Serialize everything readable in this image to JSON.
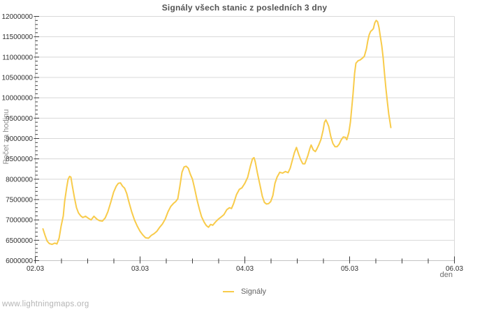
{
  "page": {
    "footer": "www.lightningmaps.org"
  },
  "colors": {
    "background": "#ffffff",
    "line": "#f8cb4a",
    "grid": "#d8d8d8",
    "axis": "#c4c4c4",
    "tick": "#3a3a3a",
    "tick_label": "#303030",
    "title": "#545454",
    "secondary_text": "#6e6e6e",
    "muted_text": "#8f8f8f",
    "watermark": "#b4b4b4"
  },
  "chart_data": {
    "type": "line",
    "title": "Signály všech stanic z posledních 3 dny",
    "xlabel": "den",
    "ylabel": "Počet za hodinu",
    "grid": "horizontal",
    "legend_position": "bottom-center",
    "x_tick_labels": [
      "02.03",
      "03.03",
      "04.03",
      "05.03",
      "06.03"
    ],
    "x_range_days": [
      0,
      4
    ],
    "x_minor_tick_days": 0.25,
    "ylim": [
      6000000,
      12000000
    ],
    "y_tick_step": 500000,
    "y_minor_tick_step": 100000,
    "series": [
      {
        "name": "Signály",
        "color": "#f8cb4a",
        "points": [
          [
            0.073,
            6780000
          ],
          [
            0.093,
            6620000
          ],
          [
            0.113,
            6480000
          ],
          [
            0.133,
            6420000
          ],
          [
            0.16,
            6400000
          ],
          [
            0.187,
            6430000
          ],
          [
            0.207,
            6410000
          ],
          [
            0.227,
            6550000
          ],
          [
            0.247,
            6850000
          ],
          [
            0.267,
            7100000
          ],
          [
            0.28,
            7450000
          ],
          [
            0.3,
            7800000
          ],
          [
            0.313,
            8000000
          ],
          [
            0.327,
            8070000
          ],
          [
            0.34,
            8050000
          ],
          [
            0.353,
            7850000
          ],
          [
            0.373,
            7550000
          ],
          [
            0.393,
            7300000
          ],
          [
            0.413,
            7170000
          ],
          [
            0.433,
            7100000
          ],
          [
            0.453,
            7060000
          ],
          [
            0.48,
            7090000
          ],
          [
            0.507,
            7040000
          ],
          [
            0.533,
            7000000
          ],
          [
            0.56,
            7090000
          ],
          [
            0.587,
            7020000
          ],
          [
            0.613,
            6980000
          ],
          [
            0.64,
            6970000
          ],
          [
            0.667,
            7050000
          ],
          [
            0.693,
            7200000
          ],
          [
            0.72,
            7430000
          ],
          [
            0.747,
            7680000
          ],
          [
            0.773,
            7830000
          ],
          [
            0.793,
            7900000
          ],
          [
            0.813,
            7910000
          ],
          [
            0.833,
            7830000
          ],
          [
            0.853,
            7780000
          ],
          [
            0.873,
            7650000
          ],
          [
            0.893,
            7450000
          ],
          [
            0.92,
            7200000
          ],
          [
            0.947,
            7000000
          ],
          [
            0.973,
            6850000
          ],
          [
            1.0,
            6720000
          ],
          [
            1.027,
            6630000
          ],
          [
            1.053,
            6560000
          ],
          [
            1.08,
            6550000
          ],
          [
            1.107,
            6620000
          ],
          [
            1.133,
            6660000
          ],
          [
            1.16,
            6720000
          ],
          [
            1.187,
            6820000
          ],
          [
            1.213,
            6900000
          ],
          [
            1.24,
            7020000
          ],
          [
            1.267,
            7200000
          ],
          [
            1.293,
            7330000
          ],
          [
            1.32,
            7410000
          ],
          [
            1.34,
            7450000
          ],
          [
            1.36,
            7520000
          ],
          [
            1.38,
            7830000
          ],
          [
            1.4,
            8170000
          ],
          [
            1.42,
            8300000
          ],
          [
            1.44,
            8320000
          ],
          [
            1.46,
            8270000
          ],
          [
            1.48,
            8120000
          ],
          [
            1.5,
            8000000
          ],
          [
            1.52,
            7780000
          ],
          [
            1.547,
            7460000
          ],
          [
            1.567,
            7260000
          ],
          [
            1.587,
            7080000
          ],
          [
            1.613,
            6940000
          ],
          [
            1.633,
            6860000
          ],
          [
            1.653,
            6820000
          ],
          [
            1.673,
            6890000
          ],
          [
            1.693,
            6870000
          ],
          [
            1.72,
            6950000
          ],
          [
            1.747,
            7020000
          ],
          [
            1.773,
            7070000
          ],
          [
            1.8,
            7130000
          ],
          [
            1.827,
            7250000
          ],
          [
            1.853,
            7300000
          ],
          [
            1.873,
            7280000
          ],
          [
            1.893,
            7400000
          ],
          [
            1.92,
            7620000
          ],
          [
            1.947,
            7750000
          ],
          [
            1.973,
            7790000
          ],
          [
            2.0,
            7900000
          ],
          [
            2.027,
            8050000
          ],
          [
            2.053,
            8320000
          ],
          [
            2.073,
            8500000
          ],
          [
            2.087,
            8530000
          ],
          [
            2.1,
            8420000
          ],
          [
            2.12,
            8150000
          ],
          [
            2.147,
            7830000
          ],
          [
            2.167,
            7580000
          ],
          [
            2.187,
            7430000
          ],
          [
            2.207,
            7390000
          ],
          [
            2.227,
            7400000
          ],
          [
            2.247,
            7450000
          ],
          [
            2.267,
            7600000
          ],
          [
            2.287,
            7900000
          ],
          [
            2.307,
            8050000
          ],
          [
            2.333,
            8170000
          ],
          [
            2.36,
            8150000
          ],
          [
            2.387,
            8190000
          ],
          [
            2.413,
            8160000
          ],
          [
            2.433,
            8270000
          ],
          [
            2.453,
            8460000
          ],
          [
            2.473,
            8650000
          ],
          [
            2.493,
            8780000
          ],
          [
            2.513,
            8620000
          ],
          [
            2.533,
            8480000
          ],
          [
            2.553,
            8380000
          ],
          [
            2.573,
            8380000
          ],
          [
            2.6,
            8570000
          ],
          [
            2.62,
            8750000
          ],
          [
            2.633,
            8840000
          ],
          [
            2.653,
            8720000
          ],
          [
            2.673,
            8680000
          ],
          [
            2.687,
            8740000
          ],
          [
            2.707,
            8850000
          ],
          [
            2.727,
            8980000
          ],
          [
            2.747,
            9200000
          ],
          [
            2.76,
            9400000
          ],
          [
            2.773,
            9460000
          ],
          [
            2.787,
            9380000
          ],
          [
            2.8,
            9300000
          ],
          [
            2.82,
            9050000
          ],
          [
            2.84,
            8880000
          ],
          [
            2.86,
            8800000
          ],
          [
            2.88,
            8800000
          ],
          [
            2.9,
            8860000
          ],
          [
            2.92,
            8970000
          ],
          [
            2.94,
            9040000
          ],
          [
            2.96,
            9030000
          ],
          [
            2.973,
            8970000
          ],
          [
            2.993,
            9150000
          ],
          [
            3.007,
            9400000
          ],
          [
            3.02,
            9750000
          ],
          [
            3.033,
            10100000
          ],
          [
            3.047,
            10600000
          ],
          [
            3.06,
            10850000
          ],
          [
            3.08,
            10910000
          ],
          [
            3.1,
            10930000
          ],
          [
            3.12,
            10970000
          ],
          [
            3.14,
            11020000
          ],
          [
            3.16,
            11200000
          ],
          [
            3.173,
            11400000
          ],
          [
            3.187,
            11550000
          ],
          [
            3.2,
            11630000
          ],
          [
            3.213,
            11660000
          ],
          [
            3.227,
            11700000
          ],
          [
            3.24,
            11840000
          ],
          [
            3.253,
            11900000
          ],
          [
            3.267,
            11870000
          ],
          [
            3.28,
            11730000
          ],
          [
            3.293,
            11500000
          ],
          [
            3.307,
            11280000
          ],
          [
            3.32,
            10980000
          ],
          [
            3.333,
            10580000
          ],
          [
            3.347,
            10220000
          ],
          [
            3.36,
            9900000
          ],
          [
            3.373,
            9600000
          ],
          [
            3.387,
            9380000
          ],
          [
            3.393,
            9270000
          ]
        ]
      }
    ]
  }
}
